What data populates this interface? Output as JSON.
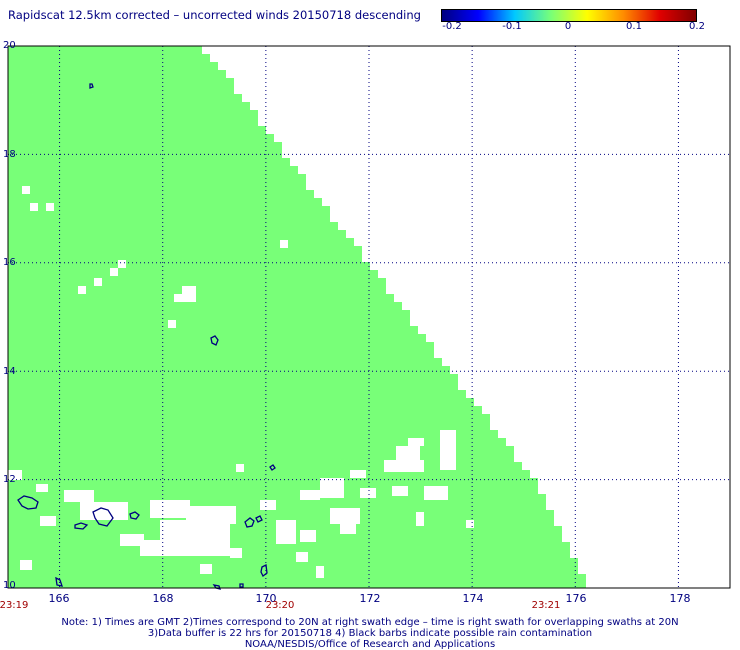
{
  "title": "Rapidscat 12.5km corrected – uncorrected winds 20150718 descending",
  "colorbar": {
    "labels": [
      "-0.2",
      "-0.1",
      "0",
      "0.1",
      "0.2"
    ],
    "colors": [
      "#000080",
      "#0000ff",
      "#00c8ff",
      "#78ff78",
      "#ffff00",
      "#ff8c00",
      "#e00000",
      "#800000"
    ]
  },
  "map": {
    "lon_range": [
      165,
      179
    ],
    "lat_range": [
      10,
      20
    ],
    "lon_ticks": [
      "166",
      "168",
      "170",
      "172",
      "174",
      "176",
      "178"
    ],
    "lat_ticks": [
      "20",
      "18",
      "16",
      "14",
      "12",
      "10"
    ],
    "swath_color": "#78ff78",
    "land_outline_color": "#000080",
    "grid": "dotted",
    "swath_edge": [
      {
        "lat": 20.0,
        "lon": 168.8
      },
      {
        "lat": 18.0,
        "lon": 170.4
      },
      {
        "lat": 16.0,
        "lon": 172.0
      },
      {
        "lat": 14.0,
        "lon": 173.6
      },
      {
        "lat": 12.0,
        "lon": 175.2
      },
      {
        "lat": 10.0,
        "lon": 176.3
      }
    ]
  },
  "times": [
    "23:19",
    "23:20",
    "23:21"
  ],
  "notes": [
    "Note: 1) Times are GMT 2)Times correspond to 20N at right swath edge – time is right swath for overlapping swaths at 20N",
    "3)Data buffer is 22 hrs for 20150718 4) Black barbs indicate possible rain contamination",
    "NOAA/NESDIS/Office of Research and Applications"
  ]
}
